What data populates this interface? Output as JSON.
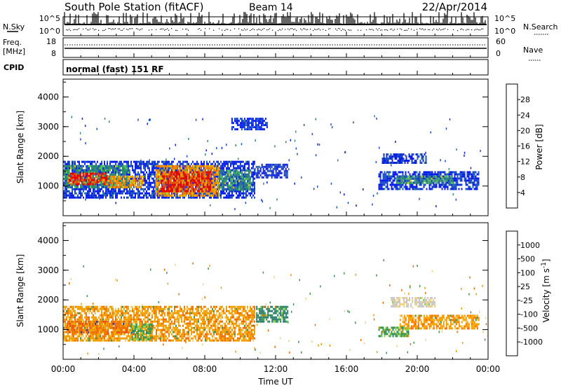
{
  "header": {
    "station": "South Pole Station (fitACF)",
    "beam": "Beam 14",
    "date": "22/Apr/2014"
  },
  "noise_panel": {
    "left_label": "N.Sky",
    "right_label": "N.Search",
    "left_ticks": [
      "10^5",
      "10^0"
    ],
    "right_ticks": [
      "10^5",
      "10^0"
    ]
  },
  "freq_panel": {
    "left_label_1": "Freq.",
    "left_label_2": "[MHz]",
    "right_label": "Nave",
    "left_ticks": [
      "18",
      "8"
    ],
    "right_ticks": [
      "60",
      "0"
    ]
  },
  "cpid_panel": {
    "label": "CPID",
    "text": "normal (fast) 151 RF"
  },
  "x_axis": {
    "title": "Time UT",
    "tick_labels": [
      "00:00",
      "04:00",
      "08:00",
      "12:00",
      "16:00",
      "20:00",
      "00:00"
    ]
  },
  "chart_data": [
    {
      "type": "heatmap",
      "title": "",
      "xlabel": "Time UT",
      "ylabel": "Slant Range [km]",
      "x_range_hours": [
        0,
        24
      ],
      "ylim": [
        0,
        4600
      ],
      "y_ticks": [
        "1000",
        "2000",
        "3000",
        "4000"
      ],
      "colorbar": {
        "label": "Power [dB]",
        "tick_labels": [
          "4",
          "8",
          "12",
          "16",
          "20",
          "24",
          "28"
        ],
        "colors": [
          "#0a1ee6",
          "#1e50c8",
          "#2d8c6e",
          "#50c850",
          "#e6c800",
          "#f08c00",
          "#e65014",
          "#e60000"
        ]
      },
      "regions": [
        {
          "t0": 0.0,
          "t1": 10.8,
          "r0": 600,
          "r1": 1850,
          "level": "blue"
        },
        {
          "t0": 0.0,
          "t1": 3.8,
          "r0": 950,
          "r1": 1700,
          "level": "green"
        },
        {
          "t0": 0.3,
          "t1": 2.5,
          "r0": 1050,
          "r1": 1450,
          "level": "red"
        },
        {
          "t0": 2.5,
          "t1": 4.5,
          "r0": 950,
          "r1": 1350,
          "level": "orange"
        },
        {
          "t0": 5.2,
          "t1": 8.8,
          "r0": 700,
          "r1": 1700,
          "level": "orange"
        },
        {
          "t0": 5.5,
          "t1": 8.3,
          "r0": 850,
          "r1": 1500,
          "level": "red"
        },
        {
          "t0": 8.8,
          "t1": 10.6,
          "r0": 900,
          "r1": 1550,
          "level": "green"
        },
        {
          "t0": 10.8,
          "t1": 12.7,
          "r0": 1300,
          "r1": 1750,
          "level": "blue"
        },
        {
          "t0": 17.8,
          "t1": 23.5,
          "r0": 900,
          "r1": 1500,
          "level": "blue"
        },
        {
          "t0": 18.8,
          "t1": 22.0,
          "r0": 1100,
          "r1": 1350,
          "level": "green"
        },
        {
          "t0": 18.0,
          "t1": 20.5,
          "r0": 1800,
          "r1": 2100,
          "level": "blue"
        },
        {
          "t0": 9.5,
          "t1": 11.5,
          "r0": 2900,
          "r1": 3300,
          "level": "blue"
        }
      ]
    },
    {
      "type": "heatmap",
      "title": "",
      "xlabel": "Time UT",
      "ylabel": "Slant Range [km]",
      "x_range_hours": [
        0,
        24
      ],
      "ylim": [
        0,
        4600
      ],
      "y_ticks": [
        "1000",
        "2000",
        "3000",
        "4000"
      ],
      "colorbar": {
        "label": "Velocity [m s^-1]",
        "tick_labels": [
          "1000",
          "500",
          "100",
          "25",
          "-25",
          "-100",
          "-500",
          "-1000"
        ],
        "colors": [
          "#1e3cb4",
          "#2a7a6a",
          "#3c9650",
          "#8cd050",
          "#c8c8c8",
          "#f0d282",
          "#f0a000",
          "#f06e00",
          "#e60000"
        ]
      },
      "regions": [
        {
          "t0": 0.0,
          "t1": 10.8,
          "r0": 650,
          "r1": 1800,
          "level": "orange"
        },
        {
          "t0": 0.2,
          "t1": 4.0,
          "r0": 900,
          "r1": 1300,
          "level": "dark-orange"
        },
        {
          "t0": 3.8,
          "t1": 5.0,
          "r0": 700,
          "r1": 1200,
          "level": "green"
        },
        {
          "t0": 10.9,
          "t1": 12.7,
          "r0": 1250,
          "r1": 1800,
          "level": "teal"
        },
        {
          "t0": 19.0,
          "t1": 23.5,
          "r0": 1050,
          "r1": 1500,
          "level": "orange"
        },
        {
          "t0": 17.8,
          "t1": 19.5,
          "r0": 800,
          "r1": 1100,
          "level": "green"
        },
        {
          "t0": 18.5,
          "t1": 21.0,
          "r0": 1800,
          "r1": 2100,
          "level": "gray"
        }
      ]
    }
  ]
}
